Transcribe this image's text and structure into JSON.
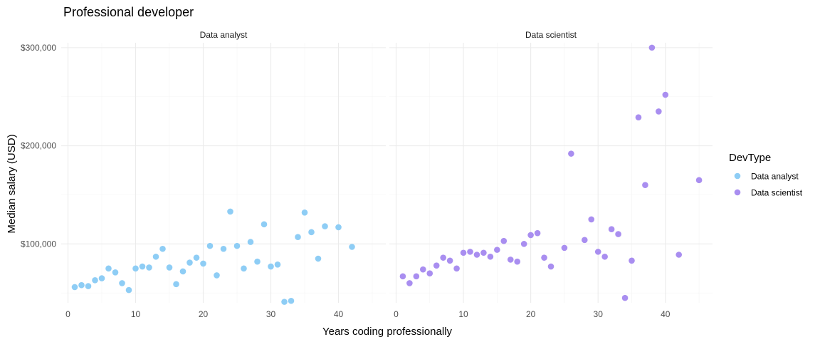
{
  "chart_data": {
    "type": "scatter",
    "title": "Professional developer",
    "xlabel": "Years coding professionally",
    "ylabel": "Median salary (USD)",
    "xlim": [
      -1,
      47
    ],
    "ylim": [
      40000,
      305000
    ],
    "x_ticks": [
      0,
      10,
      20,
      30,
      40
    ],
    "y_ticks": [
      100000,
      200000,
      300000
    ],
    "y_tick_labels": [
      "$100,000",
      "$200,000",
      "$300,000"
    ],
    "legend": {
      "title": "DevType",
      "position": "right"
    },
    "grid": true,
    "facets": [
      {
        "name": "Data analyst",
        "color": "#8ecdf5",
        "points": [
          [
            1,
            56000
          ],
          [
            2,
            58000
          ],
          [
            3,
            57000
          ],
          [
            4,
            63000
          ],
          [
            5,
            65000
          ],
          [
            6,
            75000
          ],
          [
            7,
            71000
          ],
          [
            8,
            60000
          ],
          [
            9,
            53000
          ],
          [
            10,
            75000
          ],
          [
            11,
            77000
          ],
          [
            12,
            76000
          ],
          [
            13,
            87000
          ],
          [
            14,
            95000
          ],
          [
            15,
            76000
          ],
          [
            16,
            59000
          ],
          [
            17,
            72000
          ],
          [
            18,
            81000
          ],
          [
            19,
            86000
          ],
          [
            20,
            80000
          ],
          [
            21,
            98000
          ],
          [
            22,
            68000
          ],
          [
            23,
            95000
          ],
          [
            24,
            133000
          ],
          [
            25,
            98000
          ],
          [
            26,
            75000
          ],
          [
            27,
            102000
          ],
          [
            28,
            82000
          ],
          [
            29,
            120000
          ],
          [
            30,
            77000
          ],
          [
            31,
            79000
          ],
          [
            32,
            41000
          ],
          [
            33,
            42000
          ],
          [
            34,
            107000
          ],
          [
            35,
            132000
          ],
          [
            36,
            112000
          ],
          [
            37,
            85000
          ],
          [
            38,
            118000
          ],
          [
            40,
            117000
          ],
          [
            42,
            97000
          ]
        ]
      },
      {
        "name": "Data scientist",
        "color": "#a98ef0",
        "points": [
          [
            1,
            67000
          ],
          [
            2,
            60000
          ],
          [
            3,
            67000
          ],
          [
            4,
            74000
          ],
          [
            5,
            70000
          ],
          [
            6,
            78000
          ],
          [
            7,
            86000
          ],
          [
            8,
            83000
          ],
          [
            9,
            75000
          ],
          [
            10,
            91000
          ],
          [
            11,
            92000
          ],
          [
            12,
            89000
          ],
          [
            13,
            91000
          ],
          [
            14,
            87000
          ],
          [
            15,
            94000
          ],
          [
            16,
            103000
          ],
          [
            17,
            84000
          ],
          [
            18,
            82000
          ],
          [
            19,
            100000
          ],
          [
            20,
            109000
          ],
          [
            21,
            111000
          ],
          [
            22,
            86000
          ],
          [
            23,
            77000
          ],
          [
            25,
            96000
          ],
          [
            26,
            192000
          ],
          [
            28,
            104000
          ],
          [
            29,
            125000
          ],
          [
            30,
            92000
          ],
          [
            31,
            87000
          ],
          [
            32,
            115000
          ],
          [
            33,
            110000
          ],
          [
            34,
            45000
          ],
          [
            35,
            83000
          ],
          [
            36,
            229000
          ],
          [
            37,
            160000
          ],
          [
            38,
            300000
          ],
          [
            39,
            235000
          ],
          [
            40,
            252000
          ],
          [
            42,
            89000
          ],
          [
            45,
            165000
          ]
        ]
      }
    ]
  }
}
